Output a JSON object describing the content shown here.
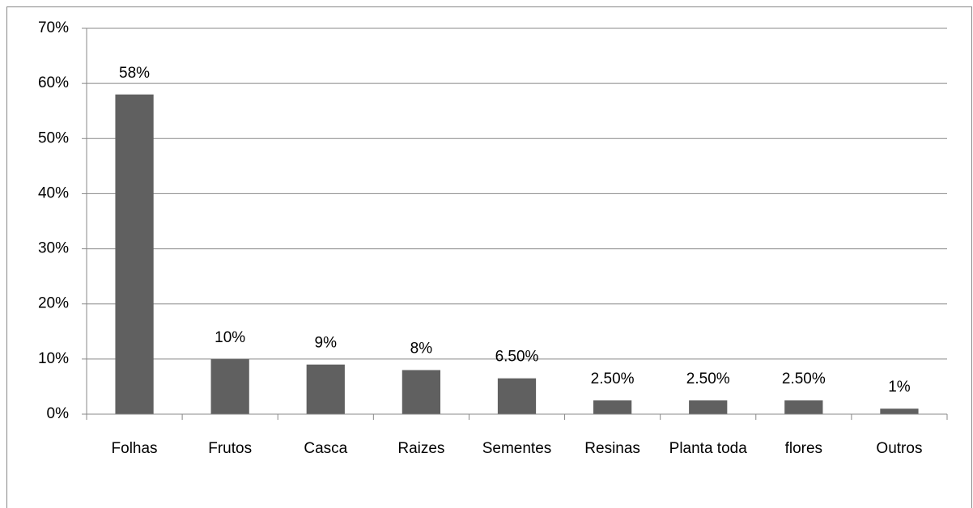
{
  "chart_data": {
    "type": "bar",
    "categories": [
      "Folhas",
      "Frutos",
      "Casca",
      "Raizes",
      "Sementes",
      "Resinas",
      "Planta toda",
      "flores",
      "Outros"
    ],
    "values": [
      58,
      10,
      9,
      8,
      6.5,
      2.5,
      2.5,
      2.5,
      1
    ],
    "value_labels": [
      "58%",
      "10%",
      "9%",
      "8%",
      "6.50%",
      "2.50%",
      "2.50%",
      "2.50%",
      "1%"
    ],
    "color": "#606060",
    "ylim": [
      0,
      70
    ],
    "yticks": [
      {
        "value": 0,
        "label": "0%"
      },
      {
        "value": 10,
        "label": "10%"
      },
      {
        "value": 20,
        "label": "20%"
      },
      {
        "value": 30,
        "label": "30%"
      },
      {
        "value": 40,
        "label": "40%"
      },
      {
        "value": 50,
        "label": "50%"
      },
      {
        "value": 60,
        "label": "60%"
      },
      {
        "value": 70,
        "label": "70%"
      }
    ],
    "grid": true
  }
}
